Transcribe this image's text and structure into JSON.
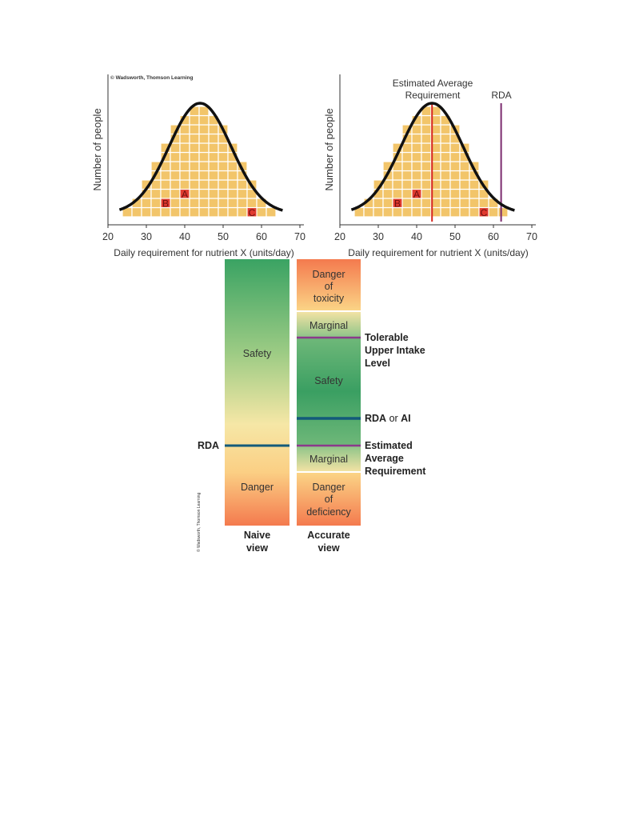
{
  "credit": "© Wadsworth, Thomson Learning",
  "side_credit": "© Wadsworth, Thomson Learning",
  "colors": {
    "square_fill": "#f2c56a",
    "grid_line": "#ffffff",
    "curve": "#111111",
    "ear_line": "#d7261e",
    "rda_line": "#7b2a6e",
    "marker_fill": "#e03a2f",
    "axis": "#333333",
    "purple_marker": "#8b3a8b",
    "blue_marker": "#135a7a",
    "green": "#3aa363",
    "yellow": "#f8df9a",
    "orange": "#f47a4e"
  },
  "chart_data": [
    {
      "type": "bar",
      "panel": "left",
      "xlabel": "Daily requirement for nutrient X (units/day)",
      "ylabel": "Number of people",
      "xlim": [
        20,
        70
      ],
      "x_ticks": [
        "20",
        "30",
        "40",
        "50",
        "60",
        "70"
      ],
      "categories": [
        25,
        27.5,
        30,
        32.5,
        35,
        37.5,
        40,
        42.5,
        45,
        47.5,
        50,
        52.5,
        55,
        57.5,
        60,
        62.5
      ],
      "values": [
        1,
        2,
        4,
        6,
        8,
        10,
        11,
        12,
        12,
        11,
        10,
        8,
        6,
        4,
        2,
        1
      ],
      "points": [
        {
          "label": "A",
          "x": 40,
          "y": 3
        },
        {
          "label": "B",
          "x": 35,
          "y": 2
        },
        {
          "label": "C",
          "x": 57.5,
          "y": 1
        }
      ]
    },
    {
      "type": "bar",
      "panel": "right",
      "xlabel": "Daily requirement for nutrient X (units/day)",
      "ylabel": "Number of people",
      "xlim": [
        20,
        70
      ],
      "x_ticks": [
        "20",
        "30",
        "40",
        "50",
        "60",
        "70"
      ],
      "categories": [
        25,
        27.5,
        30,
        32.5,
        35,
        37.5,
        40,
        42.5,
        45,
        47.5,
        50,
        52.5,
        55,
        57.5,
        60,
        62.5
      ],
      "values": [
        1,
        2,
        4,
        6,
        8,
        10,
        11,
        12,
        12,
        11,
        10,
        8,
        6,
        4,
        2,
        1
      ],
      "points": [
        {
          "label": "A",
          "x": 40,
          "y": 3
        },
        {
          "label": "B",
          "x": 35,
          "y": 2
        },
        {
          "label": "C",
          "x": 57.5,
          "y": 1
        }
      ],
      "reference_lines": [
        {
          "label": "Estimated Average Requirement",
          "x": 44
        },
        {
          "label": "RDA",
          "x": 62
        }
      ]
    }
  ],
  "scale": {
    "naive": {
      "safety": "Safety",
      "danger": "Danger",
      "caption": [
        "Naive",
        "view"
      ]
    },
    "accurate": {
      "toxicity": [
        "Danger",
        "of",
        "toxicity"
      ],
      "marginal_top": "Marginal",
      "safety": "Safety",
      "marginal_bottom": "Marginal",
      "deficiency": [
        "Danger",
        "of",
        "deficiency"
      ],
      "caption": [
        "Accurate",
        "view"
      ]
    },
    "left_label": "RDA",
    "right_labels": {
      "ul": [
        "Tolerable",
        "Upper Intake",
        "Level"
      ],
      "rda_bold": "RDA",
      "or": " or ",
      "ai_bold": "AI",
      "ear": [
        "Estimated",
        "Average",
        "Requirement"
      ]
    }
  }
}
